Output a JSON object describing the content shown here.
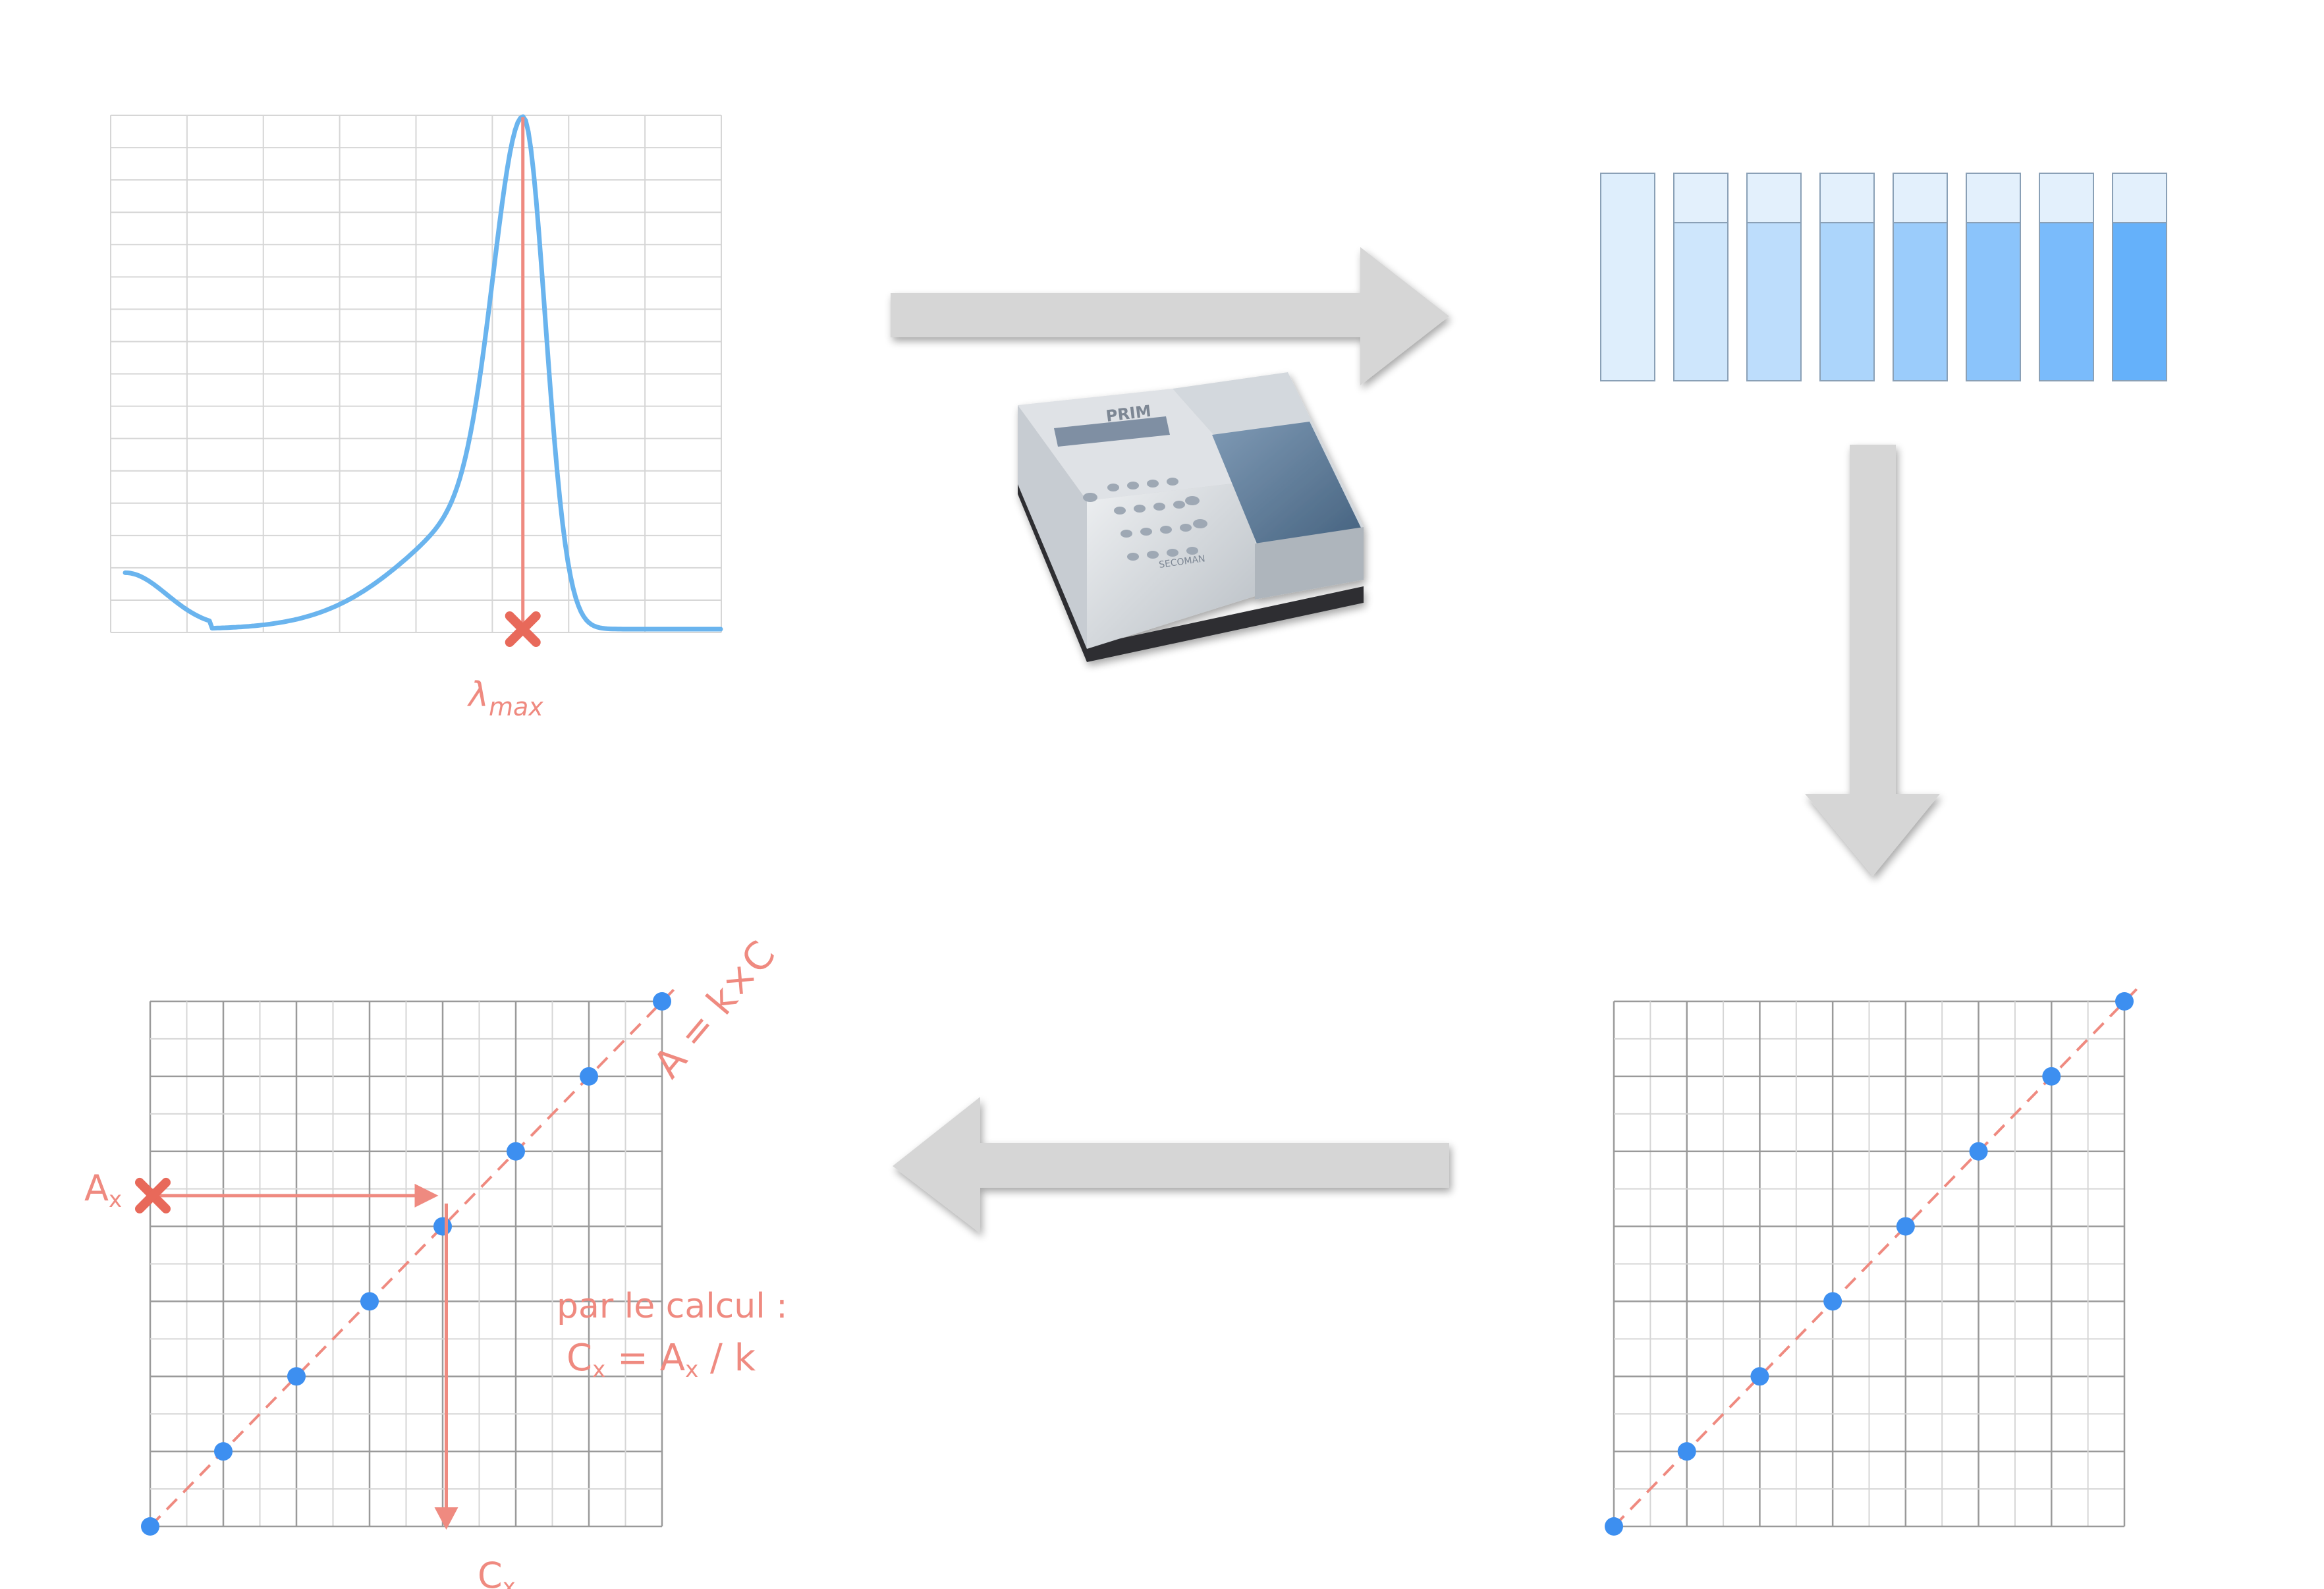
{
  "colors": {
    "curve": "#6ab4ee",
    "accent": "#ef8a80",
    "cross": "#e8695a",
    "grid": "#d6d6d6",
    "grid_dark": "#9a9a9a",
    "point": "#3d8ff0",
    "arrow": "#d6d6d6"
  },
  "spectrum": {
    "lambda_label": "λ",
    "lambda_sub": "max",
    "marker_icon": "cross-icon",
    "peak_fraction": 0.675
  },
  "cuvettes": {
    "fill_levels": [
      0.0,
      0.12,
      0.25,
      0.37,
      0.5,
      0.62,
      0.75,
      0.9
    ]
  },
  "spectrophotometer": {
    "brand": "PRIM",
    "maker": "SECOMAN",
    "icon": "spectrophotometer-icon"
  },
  "calibration": {
    "points": [
      [
        0,
        0
      ],
      [
        1,
        1
      ],
      [
        2,
        2
      ],
      [
        3,
        3
      ],
      [
        4,
        4
      ],
      [
        5,
        5
      ],
      [
        6,
        6
      ],
      [
        7,
        7
      ]
    ]
  },
  "analysis": {
    "law_label": "A = k×C",
    "ax_label": "A",
    "ax_sub": "x",
    "cx_label": "C",
    "cx_sub": "x",
    "calc_line1": "par le calcul :",
    "calc_line2_a": "C",
    "calc_line2_b": "x",
    "calc_line2_c": " = A",
    "calc_line2_d": "x",
    "calc_line2_e": " / k",
    "ax_value_fraction": 0.63,
    "marker_icon": "cross-icon"
  },
  "flow_arrows": [
    "arrow-right-icon",
    "arrow-down-icon",
    "arrow-left-icon"
  ]
}
